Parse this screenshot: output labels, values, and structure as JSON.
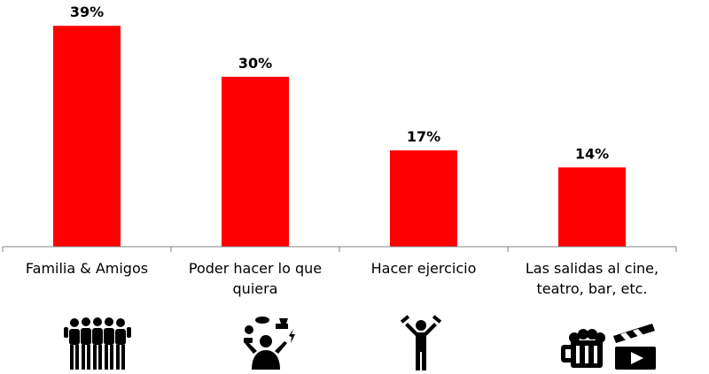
{
  "chart_data": {
    "type": "bar",
    "categories": [
      "Familia & Amigos",
      "Poder hacer lo que quiera",
      "Hacer ejercicio",
      "Las salidas al cine, teatro, bar, etc."
    ],
    "category_lines": [
      [
        "Familia & Amigos"
      ],
      [
        "Poder hacer lo que",
        "quiera"
      ],
      [
        "Hacer ejercicio"
      ],
      [
        "Las salidas al cine,",
        "teatro, bar, etc."
      ]
    ],
    "values": [
      39,
      30,
      17,
      14
    ],
    "data_labels": [
      "39%",
      "30%",
      "17%",
      "14%"
    ],
    "unit": "%",
    "ylim": [
      0,
      42
    ],
    "grid": false,
    "legend": "none",
    "title": "",
    "xlabel": "",
    "ylabel": ""
  },
  "icons": [
    "group-of-friends-icon",
    "juggling-person-icon",
    "exercising-person-icon",
    "beer-and-clapperboard-icon"
  ],
  "colors": {
    "bar": "#ff0000",
    "axis": "#808080",
    "text": "#000000",
    "icon": "#000000"
  }
}
